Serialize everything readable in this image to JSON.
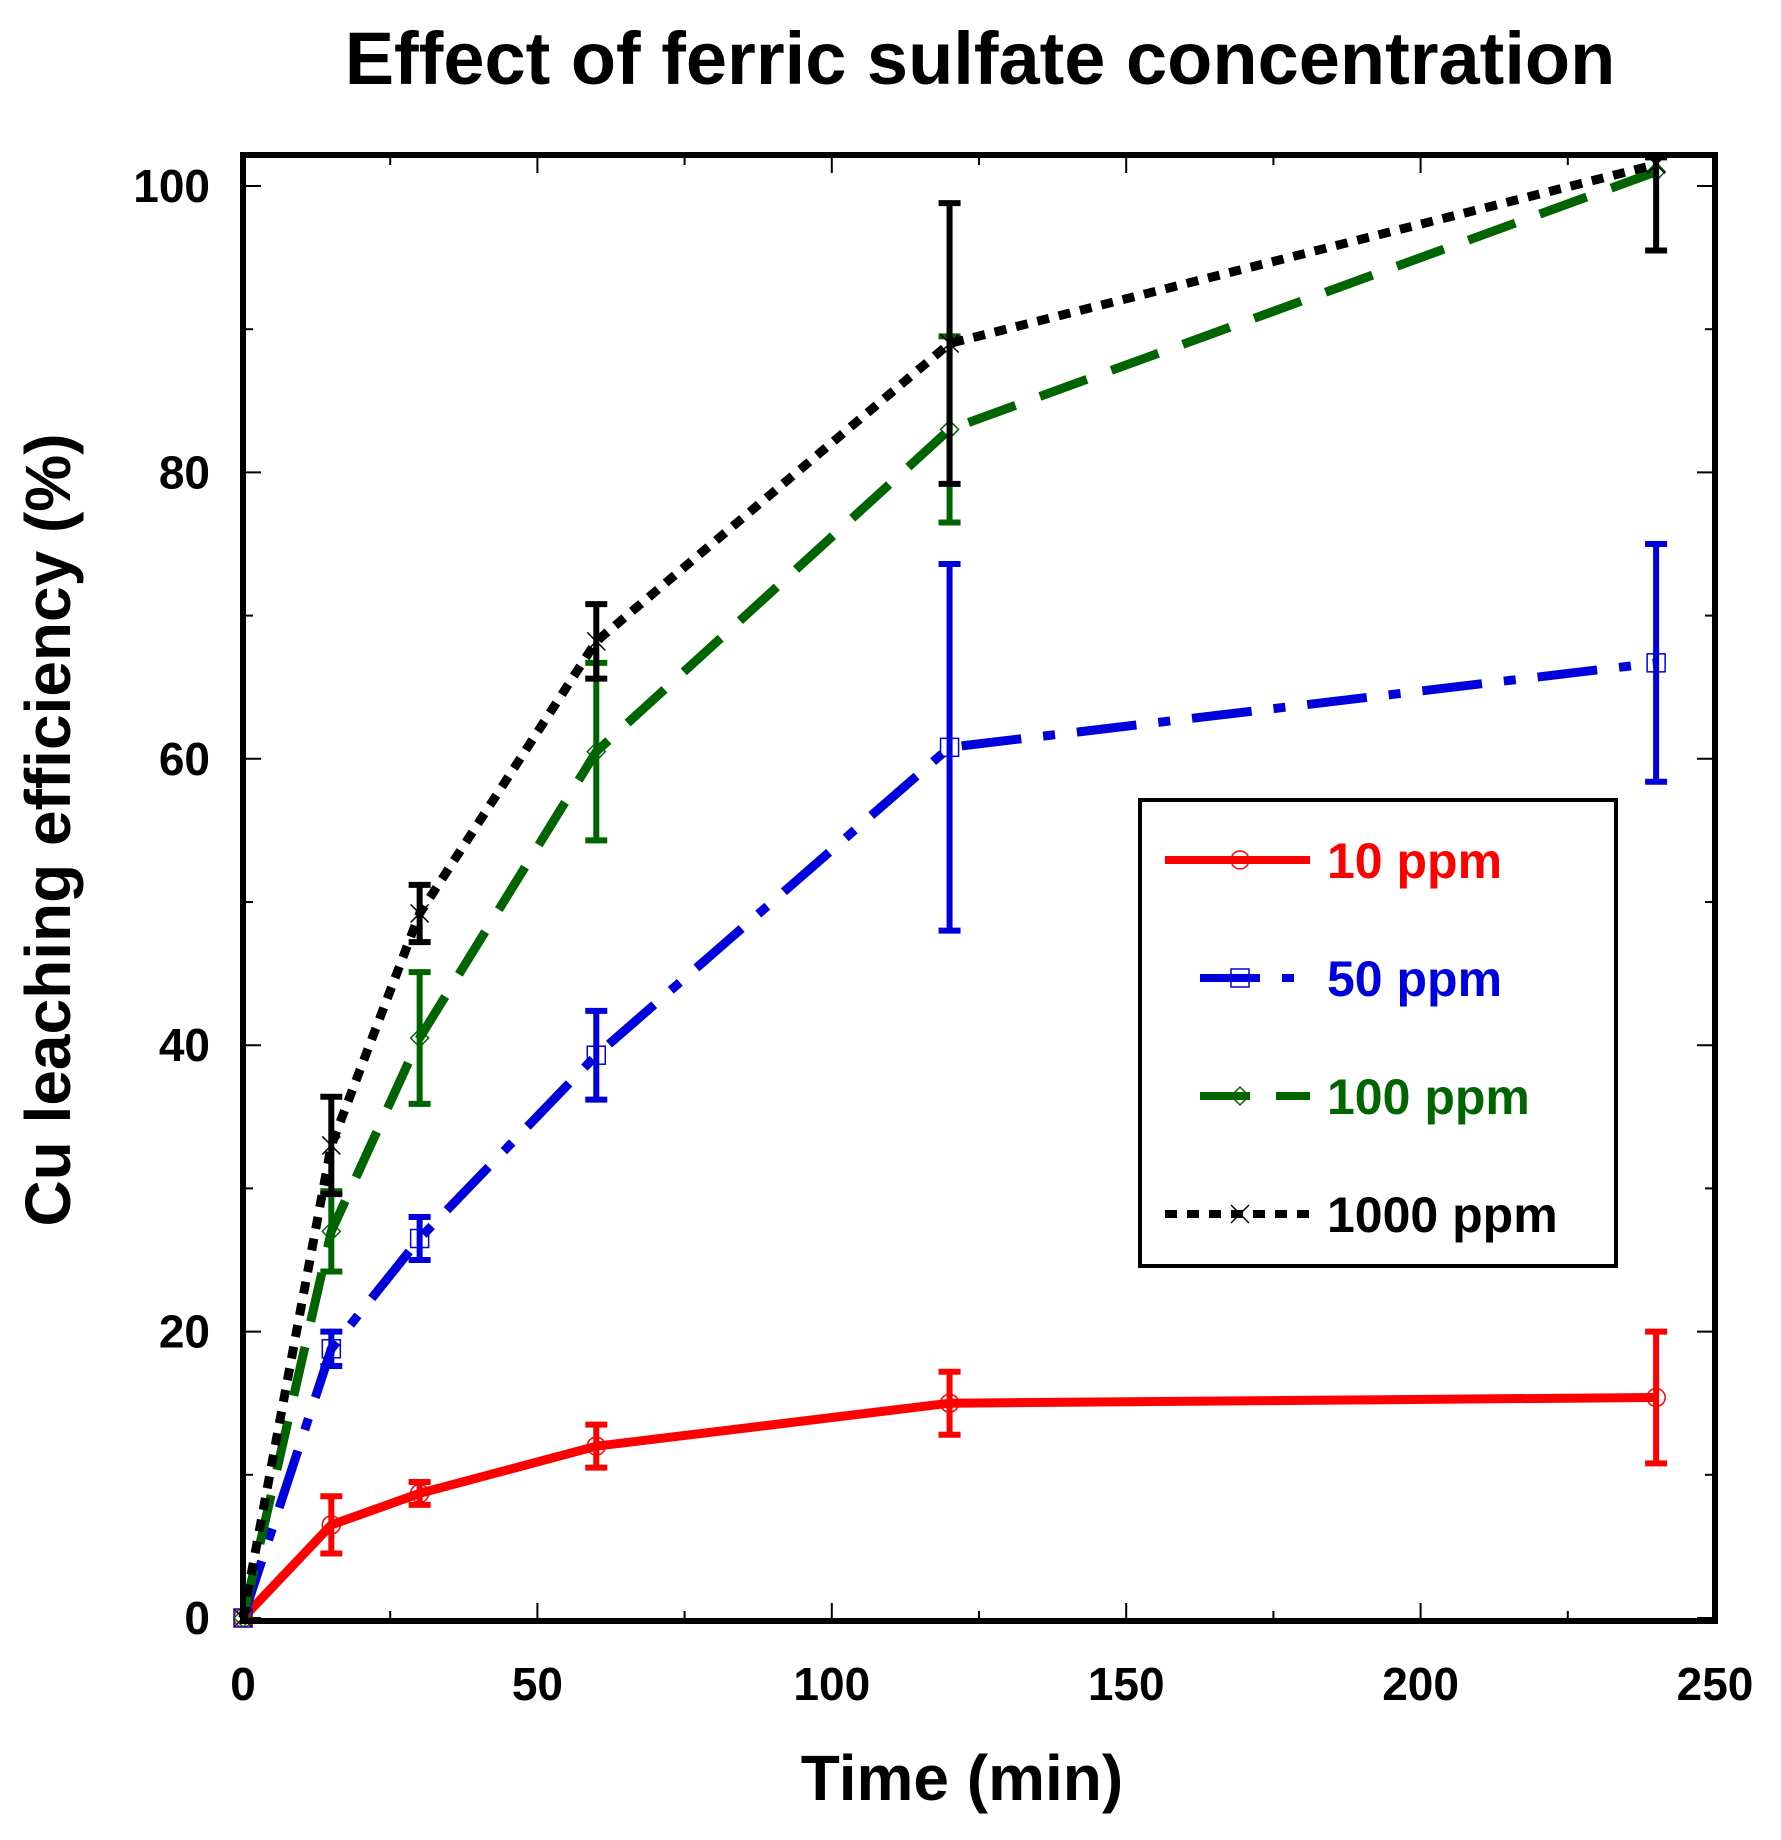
{
  "chart_data": {
    "type": "line",
    "title": "Effect of ferric sulfate concentration",
    "xlabel": "Time (min)",
    "ylabel": "Cu leaching efficiency (%)",
    "xlim": [
      0,
      250
    ],
    "ylim": [
      0,
      102
    ],
    "xticks": [
      "0",
      "50",
      "100",
      "150",
      "200",
      "250"
    ],
    "yticks": [
      "0",
      "20",
      "40",
      "60",
      "80",
      "100"
    ],
    "x": [
      0,
      15,
      30,
      60,
      120,
      240
    ],
    "series": [
      {
        "name": "10 ppm",
        "color": "#ff0000",
        "dash": "solid",
        "marker": "circle",
        "values": [
          0,
          6.5,
          8.7,
          12,
          15,
          15.4
        ],
        "errors": [
          0,
          2,
          0.8,
          1.5,
          2.2,
          4.6
        ]
      },
      {
        "name": "50 ppm",
        "color": "#0000dd",
        "dash": "dash-dot",
        "marker": "square",
        "values": [
          0,
          18.8,
          26.5,
          39.3,
          60.8,
          66.7
        ],
        "errors": [
          0,
          1.2,
          1.5,
          3.1,
          12.8,
          8.3
        ]
      },
      {
        "name": "100 ppm",
        "color": "#006400",
        "dash": "dash",
        "marker": "diamond",
        "values": [
          0,
          27,
          40.5,
          60.5,
          83,
          101
        ],
        "errors": [
          0,
          2.8,
          4.6,
          6.2,
          6.5,
          0
        ]
      },
      {
        "name": "1000 ppm",
        "color": "#000000",
        "dash": "dot",
        "marker": "x",
        "values": [
          0,
          33,
          49.2,
          68.2,
          89,
          101.5
        ],
        "errors": [
          0,
          3.4,
          2,
          2.6,
          9.8,
          6
        ]
      }
    ],
    "legend_position": "center-right",
    "grid": false
  }
}
